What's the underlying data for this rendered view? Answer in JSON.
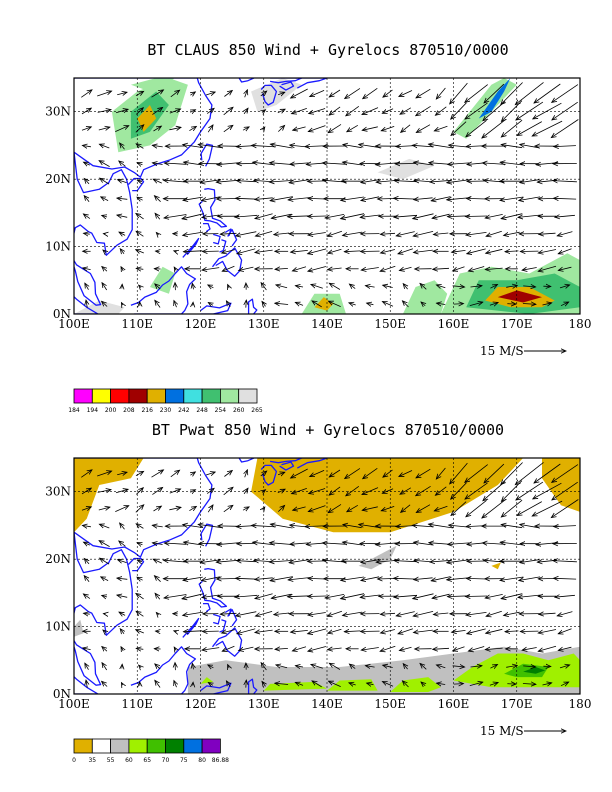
{
  "chart_data": [
    {
      "type": "map-field",
      "title": "BT CLAUS 850 Wind + Gyrelocs 870510/0000",
      "xlim": [
        100,
        180
      ],
      "ylim": [
        0,
        35
      ],
      "x_tick_labels": [
        "100E",
        "110E",
        "120E",
        "130E",
        "140E",
        "150E",
        "160E",
        "170E",
        "180"
      ],
      "y_tick_labels": [
        "0N",
        "10N",
        "20N",
        "30N"
      ],
      "x_ticks": [
        100,
        110,
        120,
        130,
        140,
        150,
        160,
        170,
        180
      ],
      "y_ticks": [
        0,
        10,
        20,
        30
      ],
      "vector_scale_label": "15 M/S",
      "legend": {
        "labels": [
          "184",
          "194",
          "200",
          "208",
          "216",
          "230",
          "242",
          "248",
          "254",
          "260",
          "265"
        ],
        "colors": [
          "#ff00ff",
          "#ffff00",
          "#ff0000",
          "#a00000",
          "#e0b000",
          "#0070e0",
          "#40e0e0",
          "#40c070",
          "#a0e8a0",
          "#e0e0e0"
        ]
      },
      "shaded_regions": [
        {
          "color": "#a0e8a0",
          "points": [
            [
              106,
              30
            ],
            [
              110,
              33
            ],
            [
              115,
              35
            ],
            [
              118,
              34
            ],
            [
              116,
              28
            ],
            [
              112,
              25
            ],
            [
              107,
              24
            ]
          ]
        },
        {
          "color": "#40c070",
          "points": [
            [
              109,
              30
            ],
            [
              113,
              33
            ],
            [
              115,
              31
            ],
            [
              112,
              27
            ],
            [
              109,
              26
            ]
          ]
        },
        {
          "color": "#e0b000",
          "points": [
            [
              110,
              29
            ],
            [
              112,
              31
            ],
            [
              113,
              29
            ],
            [
              111,
              27
            ]
          ]
        },
        {
          "color": "#a0e8a0",
          "points": [
            [
              109,
              34
            ],
            [
              113,
              35
            ],
            [
              116,
              35
            ],
            [
              112,
              33
            ]
          ]
        },
        {
          "color": "#e0e0e0",
          "points": [
            [
              128,
              33
            ],
            [
              133,
              35
            ],
            [
              136,
              34
            ],
            [
              132,
              31
            ],
            [
              129,
              30
            ]
          ]
        },
        {
          "color": "#a0e8a0",
          "points": [
            [
              160,
              27
            ],
            [
              166,
              34
            ],
            [
              168,
              35
            ],
            [
              170,
              34
            ],
            [
              166,
              30
            ],
            [
              162,
              26
            ]
          ]
        },
        {
          "color": "#0070e0",
          "points": [
            [
              164,
              29
            ],
            [
              167,
              33
            ],
            [
              169,
              35
            ],
            [
              168,
              33
            ],
            [
              166,
              30
            ]
          ]
        },
        {
          "color": "#e0e0e0",
          "points": [
            [
              148,
              21
            ],
            [
              153,
              23
            ],
            [
              157,
              22
            ],
            [
              152,
              20
            ]
          ]
        },
        {
          "color": "#a0e8a0",
          "points": [
            [
              136,
              0
            ],
            [
              138,
              3
            ],
            [
              142,
              3
            ],
            [
              143,
              0
            ]
          ]
        },
        {
          "color": "#e0b000",
          "points": [
            [
              138,
              1
            ],
            [
              139.5,
              2.5
            ],
            [
              141,
              1.5
            ],
            [
              140,
              0.5
            ]
          ]
        },
        {
          "color": "#a0e8a0",
          "points": [
            [
              152,
              0
            ],
            [
              154,
              4
            ],
            [
              157,
              5
            ],
            [
              159,
              3
            ],
            [
              158,
              0
            ]
          ]
        },
        {
          "color": "#a0e8a0",
          "points": [
            [
              158,
              0
            ],
            [
              161,
              6
            ],
            [
              166,
              7
            ],
            [
              172,
              6
            ],
            [
              178,
              9
            ],
            [
              180,
              8
            ],
            [
              180,
              0
            ]
          ]
        },
        {
          "color": "#40c070",
          "points": [
            [
              162,
              1
            ],
            [
              164,
              5
            ],
            [
              170,
              5
            ],
            [
              176,
              6
            ],
            [
              180,
              4
            ],
            [
              180,
              1
            ],
            [
              172,
              0
            ]
          ]
        },
        {
          "color": "#e0b000",
          "points": [
            [
              165,
              2
            ],
            [
              167,
              4
            ],
            [
              172,
              4
            ],
            [
              176,
              2
            ],
            [
              174,
              1
            ],
            [
              169,
              1
            ]
          ]
        },
        {
          "color": "#a00000",
          "points": [
            [
              167,
              2.5
            ],
            [
              170,
              3.5
            ],
            [
              174,
              2.5
            ],
            [
              171,
              1.7
            ]
          ]
        },
        {
          "color": "#a0e8a0",
          "points": [
            [
              112,
              4
            ],
            [
              114,
              7
            ],
            [
              116,
              6
            ],
            [
              115,
              3
            ]
          ]
        },
        {
          "color": "#e0e0e0",
          "points": [
            [
              100,
              0
            ],
            [
              104,
              2
            ],
            [
              108,
              1
            ],
            [
              107,
              0
            ]
          ]
        }
      ]
    },
    {
      "type": "map-field",
      "title": "BT Pwat 850 Wind + Gyrelocs 870510/0000",
      "xlim": [
        100,
        180
      ],
      "ylim": [
        0,
        35
      ],
      "x_tick_labels": [
        "100E",
        "110E",
        "120E",
        "130E",
        "140E",
        "150E",
        "160E",
        "170E",
        "180"
      ],
      "y_tick_labels": [
        "0N",
        "10N",
        "20N",
        "30N"
      ],
      "x_ticks": [
        100,
        110,
        120,
        130,
        140,
        150,
        160,
        170,
        180
      ],
      "y_ticks": [
        0,
        10,
        20,
        30
      ],
      "vector_scale_label": "15 M/S",
      "legend": {
        "labels": [
          "0",
          "35",
          "55",
          "60",
          "65",
          "70",
          "75",
          "80",
          "86.88"
        ],
        "colors": [
          "#e0b000",
          "#ffffff",
          "#c0c0c0",
          "#a0f000",
          "#40c000",
          "#008000",
          "#0070e0",
          "#8000c0"
        ]
      },
      "shaded_regions": [
        {
          "color": "#e0b000",
          "points": [
            [
              100,
              35
            ],
            [
              111,
              35
            ],
            [
              109,
              32
            ],
            [
              104,
              31
            ],
            [
              102,
              26
            ],
            [
              100,
              24
            ]
          ]
        },
        {
          "color": "#e0b000",
          "points": [
            [
              129,
              35
            ],
            [
              171,
              35
            ],
            [
              167,
              31
            ],
            [
              160,
              27
            ],
            [
              150,
              24
            ],
            [
              141,
              24
            ],
            [
              133,
              26
            ],
            [
              128,
              30
            ]
          ]
        },
        {
          "color": "#e0b000",
          "points": [
            [
              174,
              35
            ],
            [
              180,
              35
            ],
            [
              180,
              27
            ],
            [
              177,
              28
            ],
            [
              174,
              32
            ]
          ]
        },
        {
          "color": "#e0b000",
          "points": [
            [
              166,
              19
            ],
            [
              167.5,
              19.5
            ],
            [
              167,
              18.5
            ]
          ]
        },
        {
          "color": "#c0c0c0",
          "points": [
            [
              145,
              19
            ],
            [
              149,
              21
            ],
            [
              151,
              22
            ],
            [
              150,
              20
            ],
            [
              147,
              18.5
            ]
          ]
        },
        {
          "color": "#c0c0c0",
          "points": [
            [
              118,
              0
            ],
            [
              118,
              4
            ],
            [
              124,
              5
            ],
            [
              132,
              4
            ],
            [
              142,
              4
            ],
            [
              152,
              5
            ],
            [
              160,
              6
            ],
            [
              168,
              7
            ],
            [
              174,
              6
            ],
            [
              180,
              7
            ],
            [
              180,
              0
            ]
          ]
        },
        {
          "color": "#c0c0c0",
          "points": [
            [
              100,
              10
            ],
            [
              101,
              11
            ],
            [
              101.5,
              9
            ],
            [
              100,
              8.5
            ]
          ]
        },
        {
          "color": "#a0f000",
          "points": [
            [
              130,
              0.5
            ],
            [
              131,
              1.5
            ],
            [
              138,
              1.8
            ],
            [
              140,
              0.8
            ]
          ]
        },
        {
          "color": "#a0f000",
          "points": [
            [
              140,
              0.5
            ],
            [
              142,
              2
            ],
            [
              147,
              2.2
            ],
            [
              148,
              0.5
            ]
          ]
        },
        {
          "color": "#a0f000",
          "points": [
            [
              150,
              0.3
            ],
            [
              152,
              2
            ],
            [
              156,
              2.5
            ],
            [
              158,
              1
            ],
            [
              156,
              0.3
            ]
          ]
        },
        {
          "color": "#a0f000",
          "points": [
            [
              120,
              1.5
            ],
            [
              121,
              2.5
            ],
            [
              122,
              1.8
            ]
          ]
        },
        {
          "color": "#a0f000",
          "points": [
            [
              160,
              2
            ],
            [
              163,
              4
            ],
            [
              167,
              6
            ],
            [
              171,
              6
            ],
            [
              175,
              5
            ],
            [
              179,
              6
            ],
            [
              180,
              5
            ],
            [
              180,
              1
            ],
            [
              172,
              1
            ],
            [
              166,
              1
            ]
          ]
        },
        {
          "color": "#40c000",
          "points": [
            [
              168,
              3
            ],
            [
              171,
              4.5
            ],
            [
              175,
              4
            ],
            [
              174,
              2.5
            ],
            [
              170,
              2.5
            ]
          ]
        },
        {
          "color": "#008000",
          "points": [
            [
              171,
              3.3
            ],
            [
              173,
              4
            ],
            [
              174.5,
              3.5
            ],
            [
              173,
              3
            ]
          ]
        }
      ]
    }
  ]
}
